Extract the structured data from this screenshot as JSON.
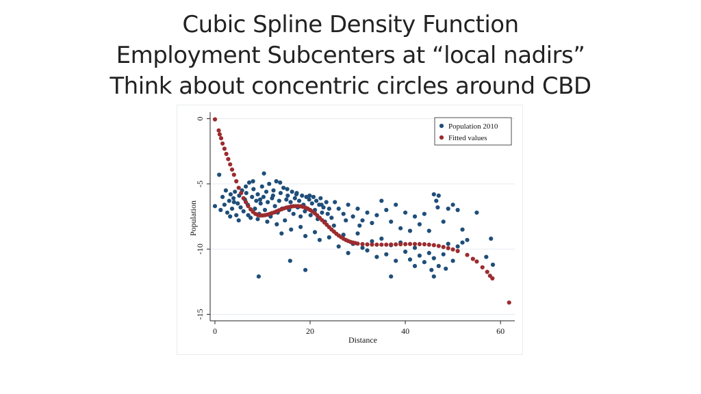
{
  "slide": {
    "title_lines": [
      "Cubic Spline Density Function",
      "Employment Subcenters at “local nadirs”",
      "Think about concentric circles around CBD"
    ]
  },
  "chart_data": {
    "type": "scatter",
    "xlabel": "Distance",
    "ylabel": "Population",
    "xlim": [
      -1,
      63
    ],
    "ylim": [
      -15.5,
      0.5
    ],
    "xticks": [
      0,
      20,
      40,
      60
    ],
    "yticks": [
      0,
      -5,
      -10,
      -15
    ],
    "grid": "horizontal",
    "legend_position": "top-right",
    "series": [
      {
        "name": "Population 2010",
        "color": "#1f4e79",
        "description_of_density": "dense cloud",
        "points": [
          [
            0.0,
            -6.7
          ],
          [
            0.9,
            -4.3
          ],
          [
            1.2,
            -7.0
          ],
          [
            1.6,
            -6.0
          ],
          [
            2.0,
            -6.6
          ],
          [
            2.3,
            -5.5
          ],
          [
            2.6,
            -7.2
          ],
          [
            3.0,
            -6.3
          ],
          [
            3.3,
            -5.8
          ],
          [
            3.6,
            -6.9
          ],
          [
            3.9,
            -6.1
          ],
          [
            4.2,
            -5.6
          ],
          [
            4.5,
            -7.4
          ],
          [
            4.8,
            -6.5
          ],
          [
            5.1,
            -5.9
          ],
          [
            5.4,
            -6.8
          ],
          [
            5.7,
            -5.5
          ],
          [
            6.0,
            -7.1
          ],
          [
            6.3,
            -6.2
          ],
          [
            6.6,
            -5.7
          ],
          [
            6.9,
            -6.6
          ],
          [
            7.2,
            -4.9
          ],
          [
            7.5,
            -7.6
          ],
          [
            7.8,
            -6.0
          ],
          [
            8.1,
            -5.4
          ],
          [
            8.4,
            -6.9
          ],
          [
            8.7,
            -6.3
          ],
          [
            9.0,
            -5.8
          ],
          [
            9.3,
            -7.3
          ],
          [
            9.6,
            -6.5
          ],
          [
            9.9,
            -5.2
          ],
          [
            10.2,
            -6.0
          ],
          [
            10.5,
            -7.0
          ],
          [
            10.8,
            -5.6
          ],
          [
            11.1,
            -6.4
          ],
          [
            11.4,
            -5.0
          ],
          [
            11.7,
            -7.5
          ],
          [
            12.0,
            -6.1
          ],
          [
            12.3,
            -5.5
          ],
          [
            12.6,
            -6.7
          ],
          [
            12.9,
            -4.8
          ],
          [
            13.2,
            -7.2
          ],
          [
            13.5,
            -6.3
          ],
          [
            13.8,
            -5.7
          ],
          [
            14.1,
            -6.9
          ],
          [
            14.4,
            -5.3
          ],
          [
            14.7,
            -7.8
          ],
          [
            15.0,
            -6.2
          ],
          [
            15.3,
            -5.9
          ],
          [
            15.6,
            -7.0
          ],
          [
            15.9,
            -6.4
          ],
          [
            16.2,
            -5.6
          ],
          [
            16.5,
            -7.3
          ],
          [
            16.8,
            -6.1
          ],
          [
            17.1,
            -5.8
          ],
          [
            17.4,
            -6.8
          ],
          [
            17.7,
            -6.3
          ],
          [
            18.0,
            -7.5
          ],
          [
            18.3,
            -5.9
          ],
          [
            18.6,
            -6.6
          ],
          [
            18.9,
            -7.1
          ],
          [
            19.2,
            -6.0
          ],
          [
            19.5,
            -6.9
          ],
          [
            19.8,
            -6.2
          ],
          [
            20.1,
            -7.4
          ],
          [
            20.4,
            -6.5
          ],
          [
            20.7,
            -6.0
          ],
          [
            21.0,
            -7.0
          ],
          [
            21.3,
            -6.3
          ],
          [
            21.6,
            -7.7
          ],
          [
            21.9,
            -6.6
          ],
          [
            22.2,
            -6.1
          ],
          [
            22.5,
            -7.2
          ],
          [
            22.8,
            -6.8
          ],
          [
            23.1,
            -7.9
          ],
          [
            23.4,
            -6.4
          ],
          [
            23.7,
            -7.3
          ],
          [
            24.0,
            -6.9
          ],
          [
            24.5,
            -7.6
          ],
          [
            25.0,
            -8.2
          ],
          [
            3.2,
            -7.5
          ],
          [
            5.0,
            -7.8
          ],
          [
            7.0,
            -7.4
          ],
          [
            9.0,
            -7.7
          ],
          [
            11.0,
            -7.9
          ],
          [
            13.0,
            -8.1
          ],
          [
            14.0,
            -8.8
          ],
          [
            16.0,
            -8.5
          ],
          [
            18.0,
            -8.3
          ],
          [
            19.0,
            -9.0
          ],
          [
            21.0,
            -8.7
          ],
          [
            22.0,
            -9.3
          ],
          [
            24.0,
            -9.1
          ],
          [
            26.0,
            -9.8
          ],
          [
            27.0,
            -8.9
          ],
          [
            28.0,
            -10.3
          ],
          [
            29.0,
            -9.6
          ],
          [
            30.0,
            -8.8
          ],
          [
            31.0,
            -9.9
          ],
          [
            32.0,
            -10.1
          ],
          [
            33.0,
            -9.4
          ],
          [
            34.0,
            -10.6
          ],
          [
            35.0,
            -9.2
          ],
          [
            36.0,
            -10.4
          ],
          [
            37.0,
            -9.7
          ],
          [
            38.0,
            -10.9
          ],
          [
            39.0,
            -9.5
          ],
          [
            40.0,
            -10.2
          ],
          [
            41.0,
            -10.8
          ],
          [
            42.0,
            -9.9
          ],
          [
            43.0,
            -10.5
          ],
          [
            44.0,
            -11.0
          ],
          [
            45.0,
            -10.3
          ],
          [
            46.0,
            -10.7
          ],
          [
            47.0,
            -11.3
          ],
          [
            48.0,
            -10.4
          ],
          [
            49.0,
            -9.6
          ],
          [
            50.0,
            -10.9
          ],
          [
            51.0,
            -9.8
          ],
          [
            52.0,
            -9.5
          ],
          [
            26.0,
            -6.9
          ],
          [
            27.0,
            -7.3
          ],
          [
            28.0,
            -6.6
          ],
          [
            29.0,
            -7.5
          ],
          [
            30.0,
            -6.9
          ],
          [
            31.0,
            -7.8
          ],
          [
            32.0,
            -7.2
          ],
          [
            33.0,
            -8.0
          ],
          [
            34.0,
            -7.4
          ],
          [
            35.0,
            -6.3
          ],
          [
            36.0,
            -7.0
          ],
          [
            37.0,
            -7.9
          ],
          [
            38.0,
            -6.6
          ],
          [
            39.0,
            -8.4
          ],
          [
            40.0,
            -7.2
          ],
          [
            41.0,
            -8.6
          ],
          [
            42.0,
            -7.5
          ],
          [
            43.0,
            -8.1
          ],
          [
            44.0,
            -7.3
          ],
          [
            45.0,
            -8.6
          ],
          [
            46.0,
            -5.8
          ],
          [
            46.5,
            -6.3
          ],
          [
            47.0,
            -5.9
          ],
          [
            46.8,
            -6.8
          ],
          [
            48.0,
            -7.9
          ],
          [
            49.0,
            -6.9
          ],
          [
            50.0,
            -6.6
          ],
          [
            51.0,
            -7.0
          ],
          [
            52.0,
            -8.5
          ],
          [
            53.0,
            -9.3
          ],
          [
            55.0,
            -7.2
          ],
          [
            57.0,
            -10.6
          ],
          [
            58.0,
            -9.2
          ],
          [
            58.4,
            -11.2
          ],
          [
            9.2,
            -12.1
          ],
          [
            19.0,
            -11.6
          ],
          [
            15.8,
            -10.9
          ],
          [
            37.0,
            -12.1
          ],
          [
            42.0,
            -11.3
          ],
          [
            46.0,
            -12.1
          ],
          [
            48.5,
            -11.5
          ],
          [
            45.5,
            -11.6
          ],
          [
            4.0,
            -6.4
          ],
          [
            6.5,
            -5.2
          ],
          [
            8.0,
            -4.8
          ],
          [
            9.5,
            -6.2
          ],
          [
            10.3,
            -4.2
          ],
          [
            12.2,
            -5.9
          ],
          [
            13.7,
            -4.9
          ],
          [
            15.2,
            -5.4
          ],
          [
            17.2,
            -5.7
          ],
          [
            19.9,
            -5.9
          ],
          [
            22.4,
            -6.6
          ],
          [
            25.2,
            -6.4
          ],
          [
            27.5,
            -7.8
          ],
          [
            30.4,
            -8.2
          ]
        ]
      },
      {
        "name": "Fitted values",
        "color": "#9b2c2f",
        "points": [
          [
            0.0,
            -0.05
          ],
          [
            0.8,
            -0.9
          ],
          [
            1.0,
            -1.2
          ],
          [
            1.3,
            -1.5
          ],
          [
            1.6,
            -1.9
          ],
          [
            2.0,
            -2.3
          ],
          [
            2.4,
            -2.7
          ],
          [
            2.8,
            -3.1
          ],
          [
            3.2,
            -3.5
          ],
          [
            3.6,
            -3.9
          ],
          [
            4.0,
            -4.3
          ],
          [
            4.5,
            -4.8
          ],
          [
            5.0,
            -5.3
          ],
          [
            5.5,
            -5.7
          ],
          [
            6.0,
            -6.1
          ],
          [
            6.5,
            -6.4
          ],
          [
            7.0,
            -6.7
          ],
          [
            7.5,
            -6.95
          ],
          [
            8.0,
            -7.15
          ],
          [
            8.5,
            -7.3
          ],
          [
            9.0,
            -7.38
          ],
          [
            9.5,
            -7.42
          ],
          [
            10.0,
            -7.42
          ],
          [
            10.5,
            -7.4
          ],
          [
            11.0,
            -7.36
          ],
          [
            11.5,
            -7.3
          ],
          [
            12.0,
            -7.24
          ],
          [
            12.5,
            -7.18
          ],
          [
            13.0,
            -7.1
          ],
          [
            13.5,
            -7.02
          ],
          [
            14.0,
            -6.95
          ],
          [
            14.5,
            -6.88
          ],
          [
            15.0,
            -6.82
          ],
          [
            15.5,
            -6.78
          ],
          [
            16.0,
            -6.74
          ],
          [
            16.5,
            -6.71
          ],
          [
            17.0,
            -6.7
          ],
          [
            17.5,
            -6.7
          ],
          [
            18.0,
            -6.72
          ],
          [
            18.5,
            -6.76
          ],
          [
            19.0,
            -6.82
          ],
          [
            19.5,
            -6.9
          ],
          [
            20.0,
            -7.0
          ],
          [
            20.5,
            -7.12
          ],
          [
            21.0,
            -7.26
          ],
          [
            21.5,
            -7.42
          ],
          [
            22.0,
            -7.6
          ],
          [
            22.5,
            -7.78
          ],
          [
            23.0,
            -7.96
          ],
          [
            23.5,
            -8.14
          ],
          [
            24.0,
            -8.32
          ],
          [
            24.5,
            -8.5
          ],
          [
            25.0,
            -8.66
          ],
          [
            25.5,
            -8.82
          ],
          [
            26.0,
            -8.96
          ],
          [
            26.5,
            -9.08
          ],
          [
            27.0,
            -9.2
          ],
          [
            27.5,
            -9.3
          ],
          [
            28.0,
            -9.38
          ],
          [
            28.5,
            -9.45
          ],
          [
            29.0,
            -9.5
          ],
          [
            29.5,
            -9.54
          ],
          [
            30.0,
            -9.58
          ],
          [
            31.0,
            -9.62
          ],
          [
            32.0,
            -9.64
          ],
          [
            33.0,
            -9.65
          ],
          [
            34.0,
            -9.66
          ],
          [
            35.0,
            -9.66
          ],
          [
            36.0,
            -9.66
          ],
          [
            37.0,
            -9.65
          ],
          [
            38.0,
            -9.64
          ],
          [
            39.0,
            -9.63
          ],
          [
            40.0,
            -9.62
          ],
          [
            41.0,
            -9.61
          ],
          [
            42.0,
            -9.61
          ],
          [
            43.0,
            -9.62
          ],
          [
            44.0,
            -9.63
          ],
          [
            45.0,
            -9.66
          ],
          [
            46.0,
            -9.7
          ],
          [
            47.0,
            -9.76
          ],
          [
            48.0,
            -9.84
          ],
          [
            49.0,
            -9.93
          ],
          [
            50.0,
            -10.03
          ],
          [
            51.0,
            -10.15
          ],
          [
            53.0,
            -10.45
          ],
          [
            54.2,
            -10.75
          ],
          [
            55.0,
            -10.95
          ],
          [
            56.2,
            -11.4
          ],
          [
            57.2,
            -11.75
          ],
          [
            57.8,
            -12.05
          ],
          [
            58.3,
            -12.25
          ],
          [
            61.8,
            -14.1
          ]
        ]
      }
    ]
  }
}
